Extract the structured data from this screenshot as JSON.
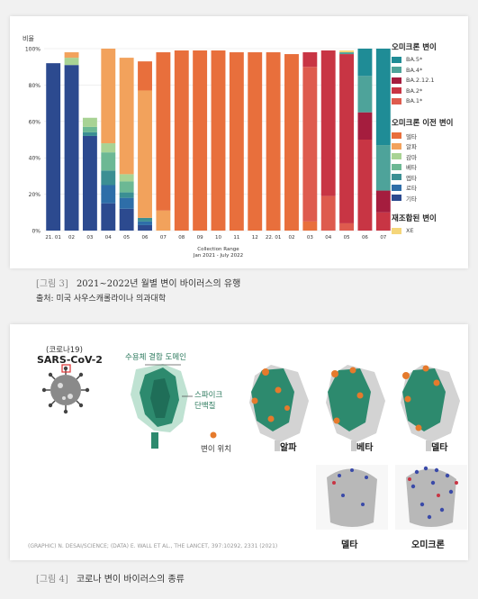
{
  "chart_data": {
    "type": "bar",
    "stacked": true,
    "percent": true,
    "ylabel": "비율",
    "xlabel": "Collection Range",
    "xlabel_sub": "Jan 2021 - July 2022",
    "yticks": [
      "0%",
      "20%",
      "40%",
      "60%",
      "80%",
      "100%"
    ],
    "ylim": [
      0,
      100
    ],
    "categories": [
      "21. 01",
      "02",
      "03",
      "04",
      "05",
      "06",
      "07",
      "08",
      "09",
      "10",
      "11",
      "12",
      "22. 01",
      "02",
      "03",
      "04",
      "05",
      "06",
      "07"
    ],
    "series": [
      {
        "name": "기타",
        "color": "#2c4a8f",
        "values": [
          92,
          91,
          52,
          15,
          12,
          3,
          0,
          0,
          0,
          0,
          0,
          0,
          0,
          0,
          0,
          0,
          0,
          0,
          0
        ]
      },
      {
        "name": "로타",
        "color": "#2e6ea8",
        "values": [
          0,
          0,
          0,
          10,
          6,
          2,
          0,
          0,
          0,
          0,
          0,
          0,
          0,
          0,
          0,
          0,
          0,
          0,
          0
        ]
      },
      {
        "name": "엡타",
        "color": "#3b8f93",
        "values": [
          0,
          0,
          2,
          8,
          3,
          2,
          0,
          0,
          0,
          0,
          0,
          0,
          0,
          0,
          0,
          0,
          0,
          0,
          0
        ]
      },
      {
        "name": "베타",
        "color": "#6cb894",
        "values": [
          0,
          0,
          3,
          10,
          6,
          0,
          0,
          0,
          0,
          0,
          0,
          0,
          0,
          0,
          0,
          0,
          0,
          0,
          0
        ]
      },
      {
        "name": "감마",
        "color": "#a8d394",
        "values": [
          0,
          4,
          5,
          5,
          4,
          0,
          0,
          0,
          0,
          0,
          0,
          0,
          0,
          0,
          0,
          0,
          0,
          0,
          0
        ]
      },
      {
        "name": "알파",
        "color": "#f2a25c",
        "values": [
          0,
          3,
          0,
          52,
          64,
          70,
          11,
          0,
          0,
          0,
          0,
          0,
          0,
          0,
          0,
          0,
          0,
          0,
          0
        ]
      },
      {
        "name": "델타",
        "color": "#e86f3c",
        "values": [
          0,
          0,
          0,
          0,
          0,
          16,
          87,
          99,
          99,
          99,
          98,
          98,
          98,
          97,
          5,
          0,
          0,
          0,
          0
        ]
      },
      {
        "name": "BA.1*",
        "color": "#de5b4e",
        "values": [
          0,
          0,
          0,
          0,
          0,
          0,
          0,
          0,
          0,
          0,
          0,
          0,
          0,
          0,
          85,
          19,
          4,
          0,
          0
        ]
      },
      {
        "name": "BA.2*",
        "color": "#c83544",
        "values": [
          0,
          0,
          0,
          0,
          0,
          0,
          0,
          0,
          0,
          0,
          0,
          0,
          0,
          0,
          8,
          80,
          93,
          50,
          10
        ]
      },
      {
        "name": "BA.2.12.1",
        "color": "#a51d3e",
        "values": [
          0,
          0,
          0,
          0,
          0,
          0,
          0,
          0,
          0,
          0,
          0,
          0,
          0,
          0,
          0,
          0,
          0,
          15,
          12
        ]
      },
      {
        "name": "BA.4*",
        "color": "#4ea39a",
        "values": [
          0,
          0,
          0,
          0,
          0,
          0,
          0,
          0,
          0,
          0,
          0,
          0,
          0,
          0,
          0,
          0,
          1,
          20,
          25
        ]
      },
      {
        "name": "BA.5*",
        "color": "#1f8c96",
        "values": [
          0,
          0,
          0,
          0,
          0,
          0,
          0,
          0,
          0,
          0,
          0,
          0,
          0,
          0,
          0,
          0,
          0,
          15,
          53
        ]
      },
      {
        "name": "XE",
        "color": "#f5d67a",
        "values": [
          0,
          0,
          0,
          0,
          0,
          0,
          0,
          0,
          0,
          0,
          0,
          0,
          0,
          0,
          0,
          0,
          1,
          0,
          0
        ]
      }
    ],
    "legend_groups": [
      {
        "title": "오미크론 변이",
        "items": [
          {
            "name": "BA.5*",
            "color": "#1f8c96"
          },
          {
            "name": "BA.4*",
            "color": "#4ea39a"
          },
          {
            "name": "BA.2.12.1",
            "color": "#a51d3e"
          },
          {
            "name": "BA.2*",
            "color": "#c83544"
          },
          {
            "name": "BA.1*",
            "color": "#de5b4e"
          }
        ]
      },
      {
        "title": "오미크론 이전 변이",
        "items": [
          {
            "name": "델타",
            "color": "#e86f3c"
          },
          {
            "name": "알파",
            "color": "#f2a25c"
          },
          {
            "name": "감마",
            "color": "#a8d394"
          },
          {
            "name": "베타",
            "color": "#6cb894"
          },
          {
            "name": "엡타",
            "color": "#3b8f93"
          },
          {
            "name": "로타",
            "color": "#2e6ea8"
          },
          {
            "name": "기타",
            "color": "#2c4a8f"
          }
        ]
      },
      {
        "title": "재조합된 변이",
        "items": [
          {
            "name": "XE",
            "color": "#f5d67a"
          }
        ]
      }
    ],
    "legend_position": "right"
  },
  "figure3": {
    "label": "[그림 3]",
    "caption": "2021~2022년 월별 변이 바이러스의 유행",
    "source": "출처: 미국 사우스캐롤라이나 의과대학"
  },
  "figure4": {
    "label": "[그림 4]",
    "caption": "코로나 변이 바이러스의 종류",
    "virus_label_ko": "(코로나19)",
    "virus_label_en": "SARS-CoV-2",
    "rbd_label": "수용체 결합 도메인",
    "spike_label_1": "스파이크",
    "spike_label_2": "단백질",
    "mutation_label": "변이 위치",
    "variants": [
      "알파",
      "베타",
      "델타"
    ],
    "bottom_variants": [
      "델타",
      "오미크론"
    ],
    "credit": "(GRAPHIC) N. DESAI/SCIENCE; (DATA) E. WALL ET AL., THE LANCET, 397:10292, 2331 (2021)"
  }
}
